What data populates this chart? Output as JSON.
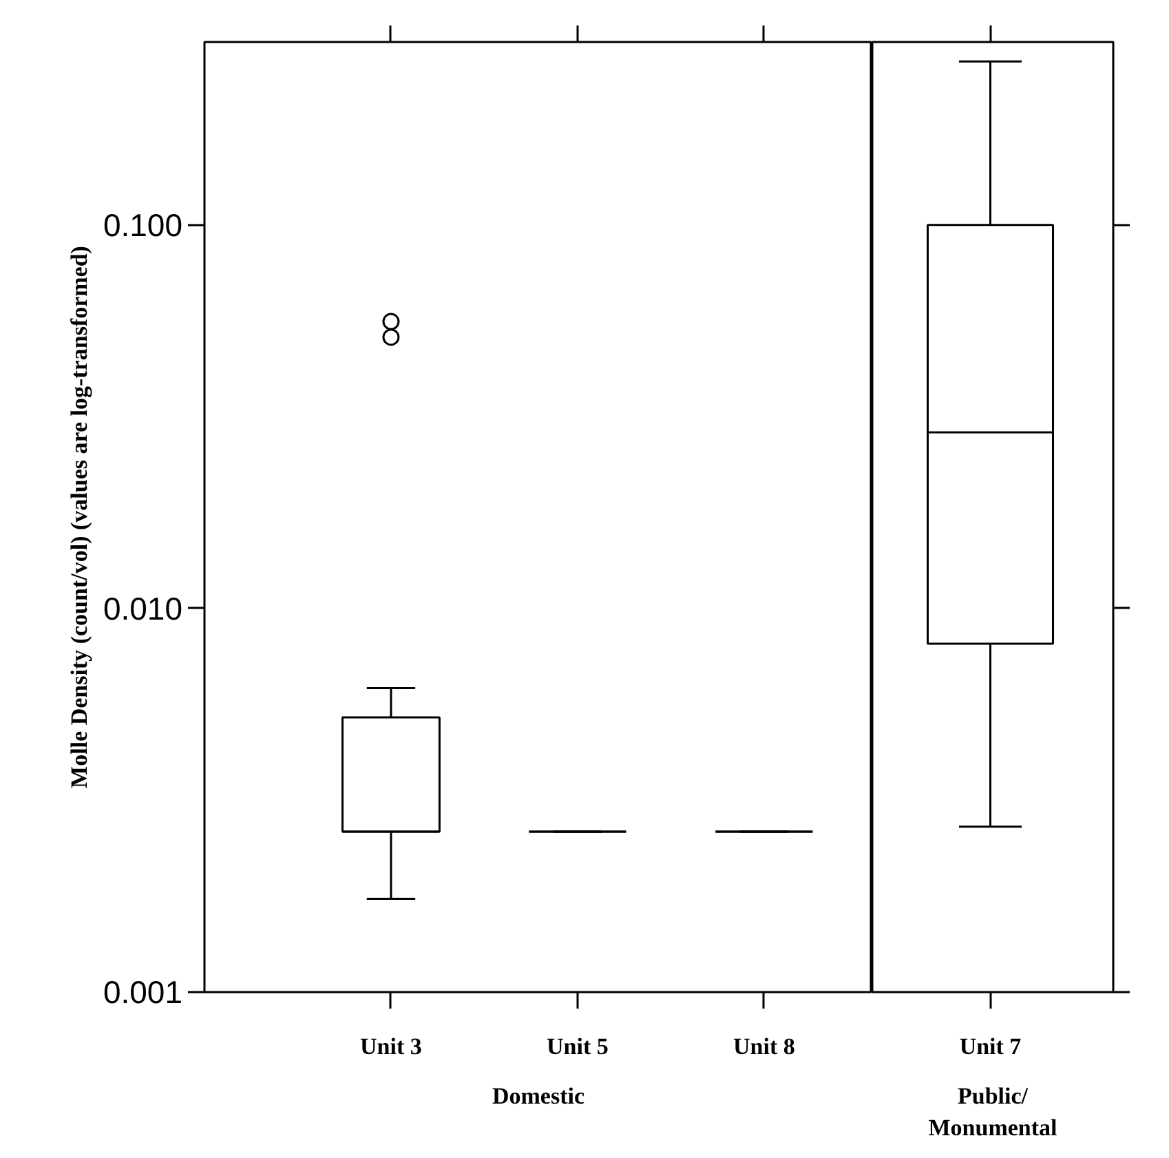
{
  "chart_data": [
    {
      "type": "box",
      "ylabel": "Molle Density (count/vol) (values are log-transformed)",
      "xlabel": "Domestic",
      "categories": [
        "Unit 3",
        "Unit 5",
        "Unit 8"
      ],
      "log": true,
      "ylim": [
        0.001,
        0.3
      ],
      "yticks": [
        {
          "value": 0.001,
          "label": "0.001"
        },
        {
          "value": 0.01,
          "label": "0.010"
        },
        {
          "value": 0.1,
          "label": "0.100"
        }
      ],
      "grid": false,
      "boxes": [
        {
          "low": 0.00175,
          "q1": 0.00262,
          "median": 0.00262,
          "q3": 0.0052,
          "high": 0.0062,
          "outliers": [
            0.056,
            0.051
          ]
        },
        {
          "low": 0.00262,
          "q1": 0.00262,
          "median": 0.00262,
          "q3": 0.00262,
          "high": 0.00262
        },
        {
          "low": 0.00262,
          "q1": 0.00262,
          "median": 0.00262,
          "q3": 0.00262,
          "high": 0.00262
        }
      ]
    },
    {
      "type": "box",
      "xlabel": "Public/\nMonumental",
      "categories": [
        "Unit 7"
      ],
      "log": true,
      "ylim": [
        0.001,
        0.3
      ],
      "yticks": [
        0.001,
        0.01,
        0.1
      ],
      "grid": false,
      "tick_labels": "x",
      "boxes": [
        {
          "low": 0.0027,
          "q1": 0.0081,
          "median": 0.0288,
          "q3": 0.1,
          "high": 0.267
        }
      ]
    }
  ]
}
